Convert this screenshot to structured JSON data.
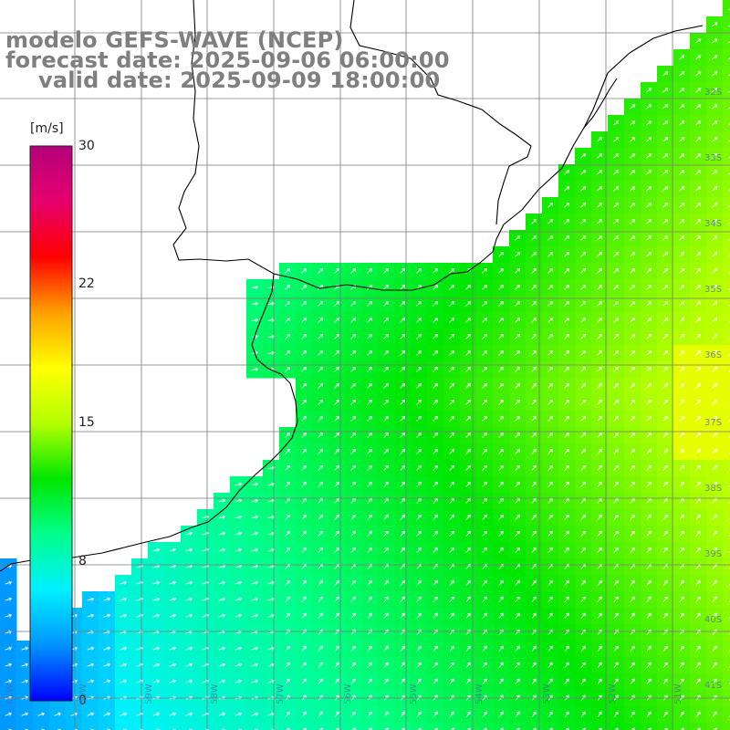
{
  "title": {
    "line1": "modelo GEFS-WAVE (NCEP)",
    "line2": "forecast date: 2025-09-06 06:00:00",
    "line3": "valid date: 2025-09-09 18:00:00"
  },
  "colorbar": {
    "unit": "[m/s]",
    "ticks": [
      "30",
      "22",
      "15",
      "8",
      "0"
    ],
    "min": 0,
    "max": 30,
    "colors": [
      "#0000ff",
      "#0094ff",
      "#00f0ff",
      "#00ff8c",
      "#00e600",
      "#b4ff00",
      "#ffff00",
      "#ffa000",
      "#ff0000",
      "#e6006e",
      "#b4007a"
    ]
  },
  "grid": {
    "lat_labels": [
      "32S",
      "33S",
      "34S",
      "35S",
      "36S",
      "37S",
      "38S",
      "39S",
      "40S",
      "41S"
    ],
    "lon_labels": [
      "61W",
      "60W",
      "59W",
      "58W",
      "57W",
      "56W",
      "55W",
      "54W",
      "53W",
      "52W",
      "51W"
    ]
  },
  "map": {
    "land_color": "#ffffff",
    "coast_color": "#000000",
    "grid_color": "#7a7a7a",
    "vector_color": "#ffffff"
  }
}
